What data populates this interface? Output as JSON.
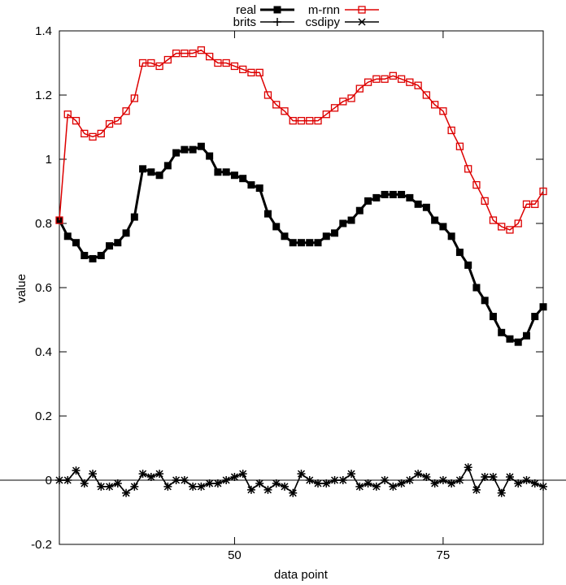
{
  "chart_data": {
    "type": "line",
    "xlabel": "data point",
    "ylabel": "value",
    "xlim": [
      29,
      87
    ],
    "ylim": [
      -0.2,
      1.4
    ],
    "x_ticks": [
      50,
      75
    ],
    "y_ticks": [
      -0.2,
      0,
      0.2,
      0.4,
      0.6,
      0.8,
      1,
      1.2,
      1.4
    ],
    "y_tick_labels": [
      "-0.2",
      "0",
      "0.2",
      "0.4",
      "0.6",
      "0.8",
      "1",
      "1.2",
      "1.4"
    ],
    "grid": false,
    "zero_line": true,
    "legend_position": "top-center",
    "x": [
      29,
      30,
      31,
      32,
      33,
      34,
      35,
      36,
      37,
      38,
      39,
      40,
      41,
      42,
      43,
      44,
      45,
      46,
      47,
      48,
      49,
      50,
      51,
      52,
      53,
      54,
      55,
      56,
      57,
      58,
      59,
      60,
      61,
      62,
      63,
      64,
      65,
      66,
      67,
      68,
      69,
      70,
      71,
      72,
      73,
      74,
      75,
      76,
      77,
      78,
      79,
      80,
      81,
      82,
      83,
      84,
      85,
      86,
      87
    ],
    "series": [
      {
        "name": "real",
        "color": "#000000",
        "marker": "filled-square",
        "values": [
          0.81,
          0.76,
          0.74,
          0.7,
          0.69,
          0.7,
          0.73,
          0.74,
          0.77,
          0.82,
          0.97,
          0.96,
          0.95,
          0.98,
          1.02,
          1.03,
          1.03,
          1.04,
          1.01,
          0.96,
          0.96,
          0.95,
          0.94,
          0.92,
          0.91,
          0.83,
          0.79,
          0.76,
          0.74,
          0.74,
          0.74,
          0.74,
          0.76,
          0.77,
          0.8,
          0.81,
          0.84,
          0.87,
          0.88,
          0.89,
          0.89,
          0.89,
          0.88,
          0.86,
          0.85,
          0.81,
          0.79,
          0.76,
          0.71,
          0.67,
          0.6,
          0.56,
          0.51,
          0.46,
          0.44,
          0.43,
          0.45,
          0.51,
          0.54
        ]
      },
      {
        "name": "m-rnn",
        "color": "#dd0000",
        "marker": "open-square",
        "values": [
          0.81,
          1.14,
          1.12,
          1.08,
          1.07,
          1.08,
          1.11,
          1.12,
          1.15,
          1.19,
          1.3,
          1.3,
          1.29,
          1.31,
          1.33,
          1.33,
          1.33,
          1.34,
          1.32,
          1.3,
          1.3,
          1.29,
          1.28,
          1.27,
          1.27,
          1.2,
          1.17,
          1.15,
          1.12,
          1.12,
          1.12,
          1.12,
          1.14,
          1.16,
          1.18,
          1.19,
          1.22,
          1.24,
          1.25,
          1.25,
          1.26,
          1.25,
          1.24,
          1.23,
          1.2,
          1.17,
          1.15,
          1.09,
          1.04,
          0.97,
          0.92,
          0.87,
          0.81,
          0.79,
          0.78,
          0.8,
          0.86,
          0.86,
          0.9
        ]
      },
      {
        "name": "brits",
        "color": "#000000",
        "marker": "plus",
        "values": [
          0.0,
          0.0,
          0.03,
          -0.01,
          0.02,
          -0.02,
          -0.02,
          -0.01,
          -0.04,
          -0.02,
          0.02,
          0.01,
          0.02,
          -0.02,
          0.0,
          0.0,
          -0.02,
          -0.02,
          -0.01,
          -0.01,
          0.0,
          0.01,
          0.02,
          -0.03,
          -0.01,
          -0.03,
          -0.01,
          -0.02,
          -0.04,
          0.02,
          0.0,
          -0.01,
          -0.01,
          0.0,
          0.0,
          0.02,
          -0.02,
          -0.01,
          -0.02,
          0.0,
          -0.02,
          -0.01,
          0.0,
          0.02,
          0.01,
          -0.01,
          0.0,
          -0.01,
          0.0,
          0.04,
          -0.03,
          0.01,
          0.01,
          -0.04,
          0.01,
          -0.01,
          0.0,
          -0.01,
          -0.02
        ]
      },
      {
        "name": "csdipy",
        "color": "#000000",
        "marker": "cross",
        "values": [
          0.0,
          0.0,
          0.03,
          -0.01,
          0.02,
          -0.02,
          -0.02,
          -0.01,
          -0.04,
          -0.02,
          0.02,
          0.01,
          0.02,
          -0.02,
          0.0,
          0.0,
          -0.02,
          -0.02,
          -0.01,
          -0.01,
          0.0,
          0.01,
          0.02,
          -0.03,
          -0.01,
          -0.03,
          -0.01,
          -0.02,
          -0.04,
          0.02,
          0.0,
          -0.01,
          -0.01,
          0.0,
          0.0,
          0.02,
          -0.02,
          -0.01,
          -0.02,
          0.0,
          -0.02,
          -0.01,
          0.0,
          0.02,
          0.01,
          -0.01,
          0.0,
          -0.01,
          0.0,
          0.04,
          -0.03,
          0.01,
          0.01,
          -0.04,
          0.01,
          -0.01,
          0.0,
          -0.01,
          -0.02
        ]
      }
    ]
  }
}
